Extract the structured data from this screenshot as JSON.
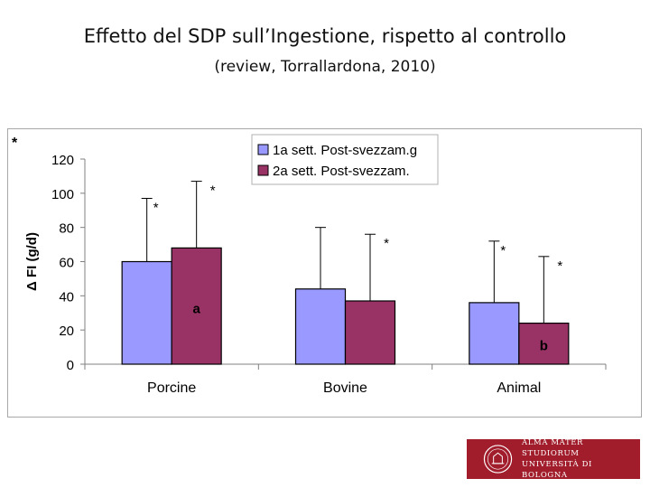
{
  "slide": {
    "title": "Effetto del SDP sull’Ingestione, rispetto al controllo",
    "subtitle": "(review, Torrallardona, 2010)"
  },
  "chart_data": {
    "type": "bar",
    "categories": [
      "Porcine",
      "Bovine",
      "Animal"
    ],
    "series": [
      {
        "name": "1a sett. Post-svezzam.g",
        "color": "#9999ff",
        "values": [
          60,
          44,
          36
        ],
        "error_upper": [
          97,
          80,
          72
        ]
      },
      {
        "name": "2a sett. Post-svezzam.",
        "color": "#993366",
        "values": [
          68,
          37,
          24
        ],
        "error_upper": [
          107,
          76,
          63
        ]
      }
    ],
    "ylabel": "Δ FI (g/d)",
    "xlabel": "",
    "ylim": [
      0,
      120
    ],
    "yticks": [
      0,
      20,
      40,
      60,
      80,
      100,
      120
    ],
    "legend_position": "top-right",
    "grid": false,
    "corner_note": "*",
    "annotations": [
      {
        "text": "*",
        "category": 0,
        "series": 0
      },
      {
        "text": "*",
        "category": 0,
        "series": 1
      },
      {
        "text": "a",
        "category": 0,
        "series": 1
      },
      {
        "text": "*",
        "category": 1,
        "series": 1
      },
      {
        "text": "*",
        "category": 2,
        "series": 0
      },
      {
        "text": "*",
        "category": 2,
        "series": 1
      },
      {
        "text": "b",
        "category": 2,
        "series": 1
      }
    ]
  },
  "logo": {
    "line1": "ALMA MATER STUDIORUM",
    "line2": "UNIVERSITÀ DI BOLOGNA",
    "bg_color": "#a11d2b"
  }
}
